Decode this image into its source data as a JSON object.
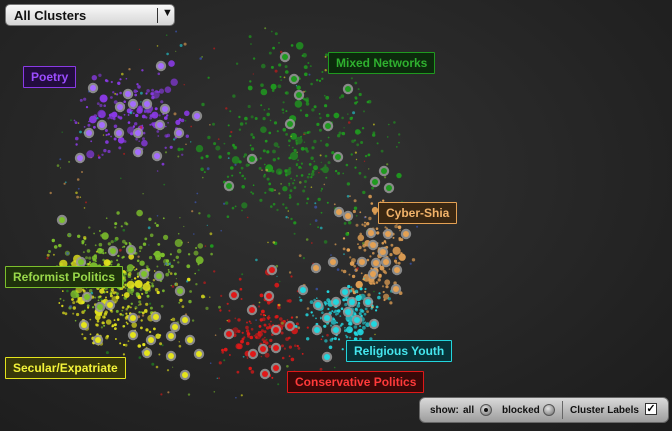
{
  "dropdown": {
    "value": "All Clusters",
    "icon": "chevron-down-icon"
  },
  "clusters": [
    {
      "key": "poetry",
      "label": "Poetry",
      "color": "#8a3ae6",
      "text_color": "#9b4cff",
      "bg": "#230d3f"
    },
    {
      "key": "mixed",
      "label": "Mixed Networks",
      "color": "#1f9a1f",
      "text_color": "#2fb02f",
      "bg": "#0c2a0c"
    },
    {
      "key": "cybershia",
      "label": "Cyber-Shia",
      "color": "#e4a154",
      "text_color": "#f2b36a",
      "bg": "#3a2712"
    },
    {
      "key": "reformist",
      "label": "Reformist Politics",
      "color": "#7cc02c",
      "text_color": "#99d84a",
      "bg": "#1f320c"
    },
    {
      "key": "religious",
      "label": "Religious Youth",
      "color": "#22d6de",
      "text_color": "#45e6ee",
      "bg": "#073338"
    },
    {
      "key": "secular",
      "label": "Secular/Expatriate",
      "color": "#e4e41c",
      "text_color": "#f4f43a",
      "bg": "#38380a"
    },
    {
      "key": "conservative",
      "label": "Conservative Politics",
      "color": "#e01818",
      "text_color": "#ff3a3a",
      "bg": "#3a0808"
    }
  ],
  "toolbar": {
    "show_label": "show:",
    "all_label": "all",
    "blocked_label": "blocked",
    "cluster_labels_label": "Cluster Labels",
    "all_selected": true,
    "blocked_selected": false,
    "cluster_labels_checked": true
  }
}
